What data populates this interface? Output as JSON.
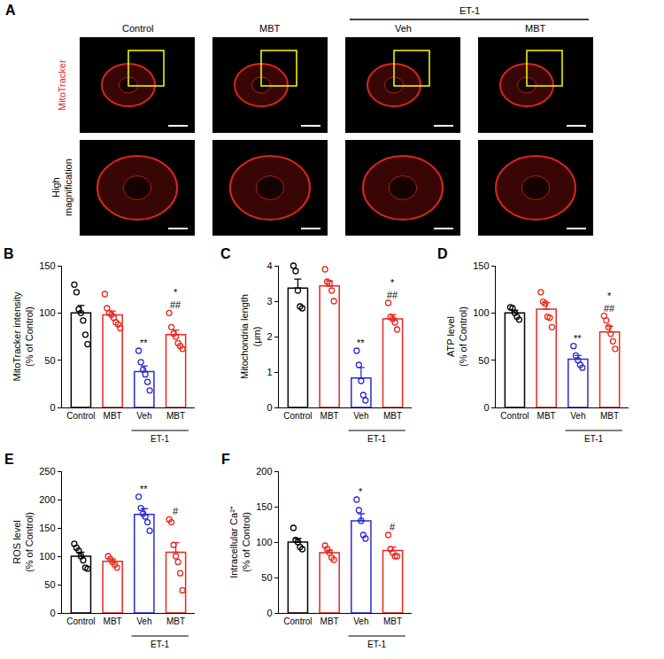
{
  "panel_a": {
    "panel": "A",
    "group_label": "ET-1",
    "group_columns": [
      2,
      3
    ],
    "columns": [
      "Control",
      "MBT",
      "Veh",
      "MBT"
    ],
    "rows": [
      {
        "label": "MitoTracker",
        "color": "#e8281e"
      },
      {
        "label": "High magnification",
        "color": "#000000"
      }
    ]
  },
  "chart_data": [
    {
      "panel": "B",
      "type": "bar",
      "ylabel": "MitoTracker intensity (% of Control)",
      "categories": [
        "Control",
        "MBT",
        "Veh",
        "MBT"
      ],
      "group_label": "ET-1",
      "group_categories": [
        2,
        3
      ],
      "colors": [
        "#000000",
        "#e8281e",
        "#2c2ccf",
        "#e8281e"
      ],
      "values": [
        100,
        98,
        38,
        77
      ],
      "errors": [
        8,
        4,
        6,
        5
      ],
      "points": [
        [
          130,
          122,
          104,
          100,
          92,
          77,
          67
        ],
        [
          120,
          105,
          100,
          98,
          95,
          90,
          88,
          84
        ],
        [
          60,
          48,
          40,
          35,
          27,
          18
        ],
        [
          100,
          85,
          78,
          75,
          68,
          65,
          62
        ]
      ],
      "significance": [
        [],
        [],
        [
          "**"
        ],
        [
          "*",
          "##"
        ]
      ],
      "ylim": [
        0,
        150
      ],
      "yticks": [
        0,
        50,
        100,
        150
      ]
    },
    {
      "panel": "C",
      "type": "bar",
      "ylabel": "Mitochondria length (μm)",
      "categories": [
        "Control",
        "MBT",
        "Veh",
        "MBT"
      ],
      "group_label": "ET-1",
      "group_categories": [
        2,
        3
      ],
      "colors": [
        "#000000",
        "#e8281e",
        "#2c2ccf",
        "#e8281e"
      ],
      "values": [
        3.37,
        3.43,
        0.83,
        2.5
      ],
      "errors": [
        0.25,
        0.15,
        0.3,
        0.12
      ],
      "points": [
        [
          4.0,
          3.85,
          3.3,
          2.85,
          2.8
        ],
        [
          3.9,
          3.55,
          3.5,
          3.3,
          3.0
        ],
        [
          1.6,
          1.2,
          0.75,
          0.35,
          0.2
        ],
        [
          2.95,
          2.55,
          2.5,
          2.4,
          2.2
        ]
      ],
      "significance": [
        [],
        [],
        [
          "**"
        ],
        [
          "*",
          "##"
        ]
      ],
      "ylim": [
        0,
        4
      ],
      "yticks": [
        0,
        1,
        2,
        3,
        4
      ]
    },
    {
      "panel": "D",
      "type": "bar",
      "ylabel": "ATP level (% of Control)",
      "categories": [
        "Control",
        "MBT",
        "Veh",
        "MBT"
      ],
      "group_label": "ET-1",
      "group_categories": [
        2,
        3
      ],
      "colors": [
        "#000000",
        "#e8281e",
        "#2c2ccf",
        "#e8281e"
      ],
      "values": [
        100,
        104,
        51,
        80
      ],
      "errors": [
        3,
        7,
        4,
        6
      ],
      "points": [
        [
          106,
          105,
          100,
          96,
          93
        ],
        [
          122,
          112,
          110,
          96,
          95,
          85
        ],
        [
          65,
          55,
          50,
          45,
          42
        ],
        [
          97,
          92,
          85,
          78,
          70,
          62
        ]
      ],
      "significance": [
        [],
        [],
        [
          "**"
        ],
        [
          "*",
          "##"
        ]
      ],
      "ylim": [
        0,
        150
      ],
      "yticks": [
        0,
        50,
        100,
        150
      ]
    },
    {
      "panel": "E",
      "type": "bar",
      "ylabel": "ROS level (% of Control)",
      "categories": [
        "Control",
        "MBT",
        "Veh",
        "MBT"
      ],
      "group_label": "ET-1",
      "group_categories": [
        2,
        3
      ],
      "colors": [
        "#000000",
        "#e8281e",
        "#2c2ccf",
        "#e8281e"
      ],
      "values": [
        100,
        91,
        174,
        107
      ],
      "errors": [
        7,
        4,
        10,
        17
      ],
      "points": [
        [
          122,
          115,
          110,
          100,
          93,
          80,
          78
        ],
        [
          100,
          95,
          90,
          85,
          80
        ],
        [
          205,
          185,
          175,
          170,
          160,
          145
        ],
        [
          165,
          160,
          120,
          100,
          90,
          70,
          40
        ]
      ],
      "significance": [
        [],
        [],
        [
          "**"
        ],
        [
          "#"
        ]
      ],
      "ylim": [
        0,
        250
      ],
      "yticks": [
        0,
        50,
        100,
        150,
        200,
        250
      ]
    },
    {
      "panel": "F",
      "type": "bar",
      "ylabel": "Intracellular Ca²⁺ (% of Control)",
      "categories": [
        "Control",
        "MBT",
        "Veh",
        "MBT"
      ],
      "group_label": "ET-1",
      "group_categories": [
        2,
        3
      ],
      "colors": [
        "#000000",
        "#e8281e",
        "#2c2ccf",
        "#e8281e"
      ],
      "values": [
        100,
        85,
        130,
        88
      ],
      "errors": [
        5,
        4,
        10,
        5
      ],
      "points": [
        [
          120,
          103,
          100,
          93,
          90
        ],
        [
          95,
          90,
          85,
          78,
          75
        ],
        [
          160,
          145,
          130,
          110,
          105
        ],
        [
          110,
          90,
          85,
          80,
          80
        ]
      ],
      "significance": [
        [],
        [],
        [
          "*"
        ],
        [
          "#"
        ]
      ],
      "ylim": [
        0,
        200
      ],
      "yticks": [
        0,
        50,
        100,
        150,
        200
      ]
    }
  ]
}
